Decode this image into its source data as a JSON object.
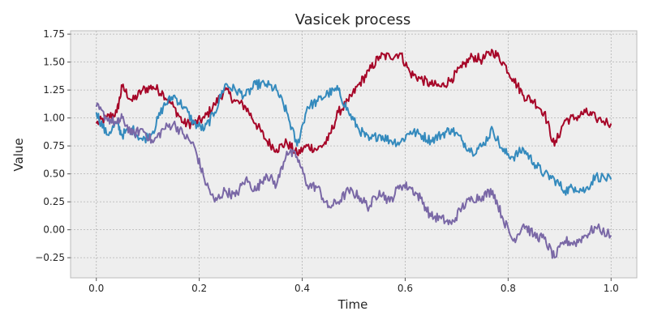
{
  "chart_data": {
    "type": "line",
    "title": "Vasicek process",
    "xlabel": "Time",
    "ylabel": "Value",
    "xlim": [
      -0.05,
      1.05
    ],
    "ylim": [
      -0.43,
      1.78
    ],
    "xticks": [
      0.0,
      0.2,
      0.4,
      0.6,
      0.8,
      1.0
    ],
    "xtick_labels": [
      "0.0",
      "0.2",
      "0.4",
      "0.6",
      "0.8",
      "1.0"
    ],
    "yticks": [
      -0.25,
      0.0,
      0.25,
      0.5,
      0.75,
      1.0,
      1.25,
      1.5,
      1.75
    ],
    "ytick_labels": [
      "−0.25",
      "0.00",
      "0.25",
      "0.50",
      "0.75",
      "1.00",
      "1.25",
      "1.50",
      "1.75"
    ],
    "grid": true,
    "background": "#eeeeee",
    "colors": [
      "#a60628",
      "#348abd",
      "#7a68a6"
    ],
    "series": [
      {
        "color": "#a60628",
        "x": [
          0.0,
          0.02,
          0.04,
          0.05,
          0.07,
          0.09,
          0.11,
          0.13,
          0.15,
          0.17,
          0.19,
          0.21,
          0.23,
          0.25,
          0.27,
          0.29,
          0.31,
          0.33,
          0.35,
          0.37,
          0.39,
          0.41,
          0.43,
          0.45,
          0.47,
          0.49,
          0.51,
          0.53,
          0.55,
          0.57,
          0.59,
          0.61,
          0.63,
          0.65,
          0.67,
          0.69,
          0.71,
          0.73,
          0.75,
          0.77,
          0.79,
          0.81,
          0.83,
          0.85,
          0.87,
          0.89,
          0.91,
          0.93,
          0.95,
          0.97,
          1.0
        ],
        "y": [
          0.95,
          1.0,
          1.05,
          1.28,
          1.15,
          1.25,
          1.28,
          1.22,
          1.1,
          0.95,
          0.95,
          1.0,
          1.12,
          1.25,
          1.15,
          1.1,
          0.95,
          0.8,
          0.72,
          0.78,
          0.68,
          0.75,
          0.72,
          0.8,
          1.05,
          1.15,
          1.3,
          1.42,
          1.55,
          1.55,
          1.58,
          1.4,
          1.35,
          1.3,
          1.28,
          1.35,
          1.45,
          1.55,
          1.52,
          1.6,
          1.5,
          1.35,
          1.2,
          1.15,
          1.05,
          0.75,
          0.98,
          1.0,
          1.05,
          1.0,
          0.95
        ]
      },
      {
        "color": "#348abd",
        "x": [
          0.0,
          0.02,
          0.04,
          0.05,
          0.07,
          0.09,
          0.11,
          0.13,
          0.15,
          0.17,
          0.19,
          0.21,
          0.23,
          0.25,
          0.27,
          0.29,
          0.31,
          0.33,
          0.35,
          0.37,
          0.39,
          0.41,
          0.43,
          0.45,
          0.47,
          0.49,
          0.51,
          0.53,
          0.55,
          0.57,
          0.59,
          0.61,
          0.63,
          0.65,
          0.67,
          0.69,
          0.71,
          0.73,
          0.75,
          0.77,
          0.79,
          0.81,
          0.83,
          0.85,
          0.87,
          0.89,
          0.91,
          0.93,
          0.95,
          0.97,
          1.0
        ],
        "y": [
          1.05,
          0.85,
          0.95,
          0.85,
          0.9,
          0.8,
          0.88,
          1.1,
          1.2,
          1.1,
          0.95,
          0.9,
          1.05,
          1.3,
          1.25,
          1.2,
          1.3,
          1.3,
          1.25,
          1.05,
          0.75,
          1.1,
          1.15,
          1.22,
          1.25,
          1.05,
          0.9,
          0.8,
          0.85,
          0.8,
          0.78,
          0.88,
          0.85,
          0.8,
          0.85,
          0.9,
          0.8,
          0.7,
          0.75,
          0.9,
          0.7,
          0.65,
          0.72,
          0.6,
          0.5,
          0.45,
          0.35,
          0.38,
          0.35,
          0.48,
          0.45
        ]
      },
      {
        "color": "#7a68a6",
        "x": [
          0.0,
          0.02,
          0.04,
          0.05,
          0.07,
          0.09,
          0.11,
          0.13,
          0.15,
          0.17,
          0.19,
          0.21,
          0.23,
          0.25,
          0.27,
          0.29,
          0.31,
          0.33,
          0.35,
          0.37,
          0.39,
          0.41,
          0.43,
          0.45,
          0.47,
          0.49,
          0.51,
          0.53,
          0.55,
          0.57,
          0.59,
          0.61,
          0.63,
          0.65,
          0.67,
          0.69,
          0.71,
          0.73,
          0.75,
          0.77,
          0.79,
          0.81,
          0.83,
          0.85,
          0.87,
          0.89,
          0.91,
          0.93,
          0.95,
          0.97,
          1.0
        ],
        "y": [
          1.1,
          1.0,
          0.95,
          1.0,
          0.85,
          0.9,
          0.78,
          0.9,
          0.95,
          0.85,
          0.75,
          0.45,
          0.25,
          0.35,
          0.3,
          0.45,
          0.35,
          0.5,
          0.4,
          0.7,
          0.65,
          0.4,
          0.38,
          0.2,
          0.25,
          0.35,
          0.3,
          0.2,
          0.35,
          0.25,
          0.4,
          0.38,
          0.28,
          0.12,
          0.1,
          0.05,
          0.2,
          0.28,
          0.3,
          0.35,
          0.1,
          -0.1,
          0.05,
          -0.05,
          -0.08,
          -0.25,
          -0.1,
          -0.12,
          -0.05,
          0.02,
          -0.05
        ]
      }
    ]
  }
}
